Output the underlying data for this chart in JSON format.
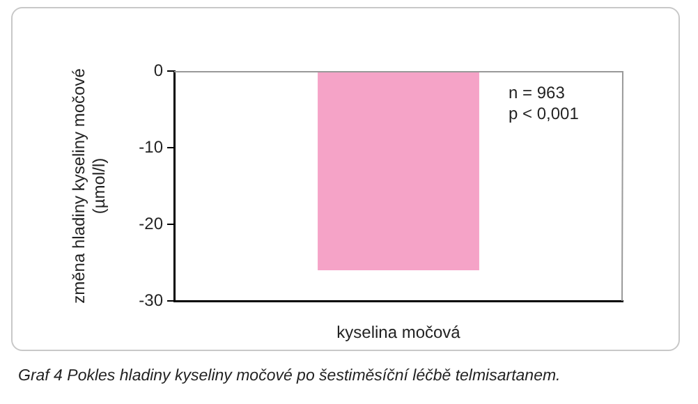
{
  "chart_data": {
    "type": "bar",
    "categories": [
      "kyselina močová"
    ],
    "values": [
      -26
    ],
    "color": "#f5a3c7",
    "ylabel": "změna hladiny kyseliny močové (µmol/l)",
    "ylim": [
      -30,
      0
    ],
    "yticks": [
      0,
      -10,
      -20,
      -30
    ],
    "grid": false,
    "legend": false,
    "annotations": [
      "n = 963\np < 0,001",
      "Graf 4  Pokles hladiny kyseliny močové po šestiměsíční léčbě telmisartanem."
    ]
  }
}
